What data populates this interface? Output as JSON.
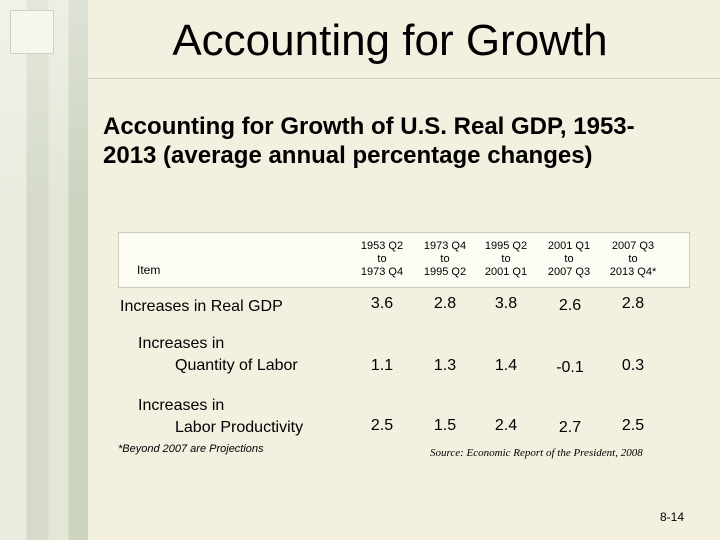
{
  "slide": {
    "title": "Accounting for Growth",
    "heading": "Accounting for Growth of U.S. Real GDP, 1953-2013 (average annual percentage changes)",
    "slide_number": "8-14"
  },
  "table": {
    "item_header": "Item",
    "columns": [
      {
        "line1": "1953 Q2",
        "line2": "to",
        "line3": "1973 Q4"
      },
      {
        "line1": "1973 Q4",
        "line2": "to",
        "line3": "1995 Q2"
      },
      {
        "line1": "1995 Q2",
        "line2": "to",
        "line3": "2001 Q1"
      },
      {
        "line1": "2001 Q1",
        "line2": "to",
        "line3": "2007 Q3"
      },
      {
        "line1": "2007 Q3",
        "line2": "to",
        "line3": "2013 Q4*"
      }
    ],
    "rows": [
      {
        "label1": "Increases in Real GDP",
        "label2": "",
        "values": [
          "3.6",
          "2.8",
          "3.8",
          "2.6",
          "2.8"
        ]
      },
      {
        "label1": "Increases in",
        "label2": "Quantity of Labor",
        "values": [
          "1.1",
          "1.3",
          "1.4",
          "-0.1",
          "0.3"
        ]
      },
      {
        "label1": "Increases in",
        "label2": "Labor Productivity",
        "values": [
          "2.5",
          "1.5",
          "2.4",
          "2.7",
          "2.5"
        ]
      }
    ],
    "footnote": "*Beyond 2007 are Projections",
    "source": "Source: Economic Report of the President, 2008"
  }
}
